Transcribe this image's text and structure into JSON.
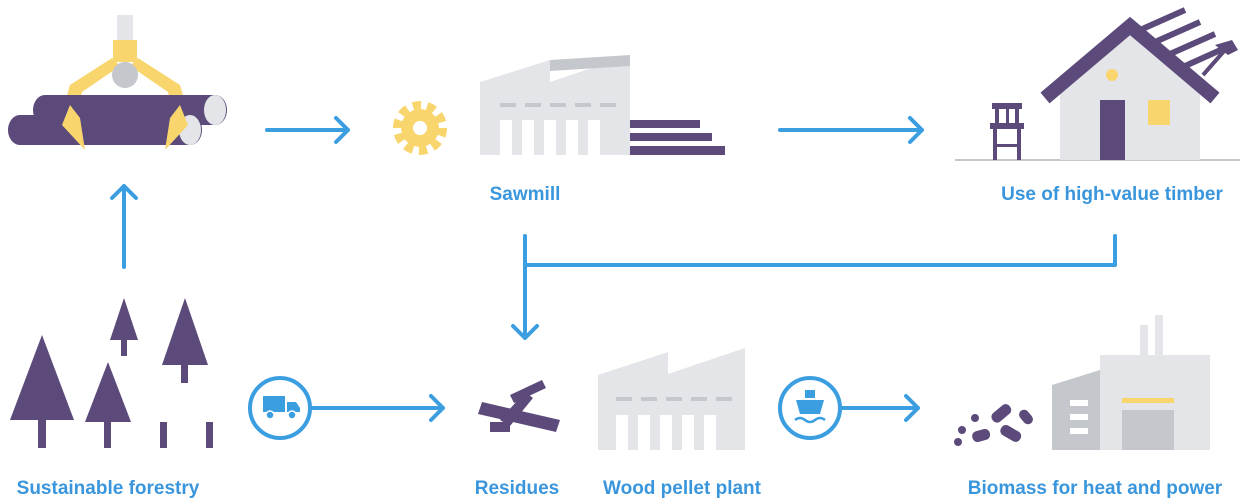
{
  "header": {
    "title": null
  },
  "nodes": [
    {
      "label": "Sawmill"
    },
    {
      "label": "Use of high-value timber"
    },
    {
      "label": "Sustainable forestry"
    },
    {
      "label": "Residues"
    },
    {
      "label": "Wood pellet plant"
    },
    {
      "label": "Biomass for heat and power"
    }
  ]
}
